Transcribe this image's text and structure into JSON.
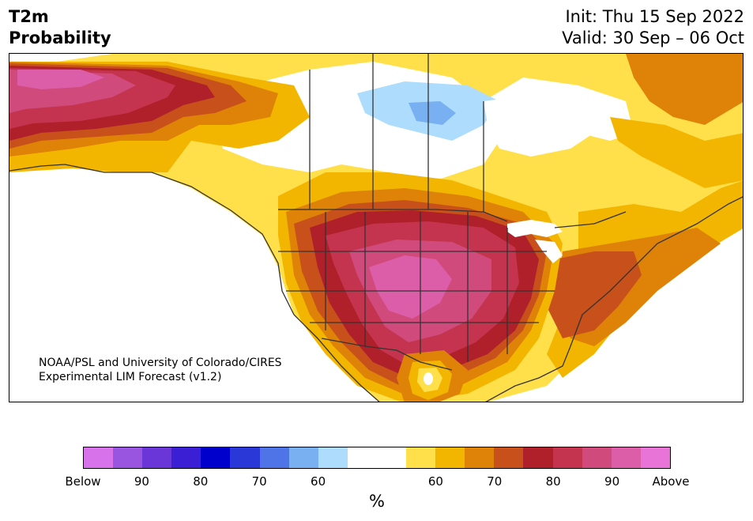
{
  "title": {
    "line1": "T2m",
    "line2": "Probability"
  },
  "init": {
    "line1": "Init: Thu 15 Sep 2022",
    "line2": "Valid: 30 Sep – 06 Oct"
  },
  "credit": {
    "line1": "NOAA/PSL and University of Colorado/CIRES",
    "line2": "Experimental LIM Forecast (v1.2)"
  },
  "colorbar": {
    "colors": [
      "#d772ea",
      "#9a55e0",
      "#6b36d8",
      "#3a1fd4",
      "#0000cc",
      "#2a38d8",
      "#4f74e8",
      "#78b0f2",
      "#addcfc",
      "#ffffff",
      "#ffffff",
      "#ffe04a",
      "#f3b600",
      "#de8308",
      "#c8501a",
      "#b0202a",
      "#c4344e",
      "#d04a7c",
      "#dc5ea8",
      "#e874d8"
    ],
    "tick_labels": [
      "Below",
      "90",
      "80",
      "70",
      "60",
      "60",
      "70",
      "80",
      "90",
      "Above"
    ],
    "unit": "%"
  }
}
